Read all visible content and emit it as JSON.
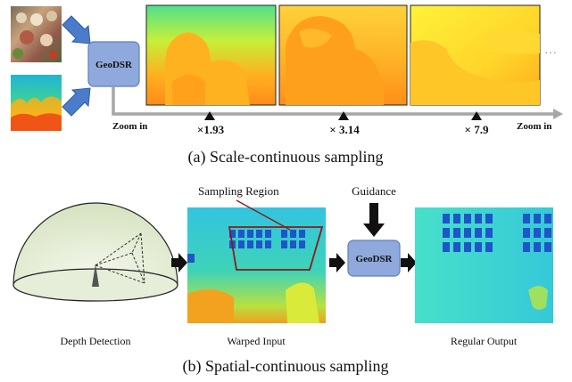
{
  "part_a": {
    "model_label": "GeoDSR",
    "zoom_in_left": "Zoom in",
    "zoom_in_right": "Zoom in",
    "scale_labels": [
      "×1.93",
      "× 3.14",
      "× 7.9"
    ],
    "ellipsis": "···",
    "caption": "(a)  Scale-continuous sampling"
  },
  "part_b": {
    "sampling_region_label": "Sampling Region",
    "guidance_label": "Guidance",
    "model_label": "GeoDSR",
    "depth_detection_label": "Depth Detection",
    "warped_input_label": "Warped Input",
    "regular_output_label": "Regular Output",
    "caption": "(b)  Spatial-continuous sampling"
  },
  "colors": {
    "model_box_fill": "#8fa9dc",
    "arrow_blue": "#4a7cc9",
    "timeline_gray": "#a6a6a6",
    "region_outline": "#8b1a1a",
    "dome_fill": "#dfe8cf"
  }
}
